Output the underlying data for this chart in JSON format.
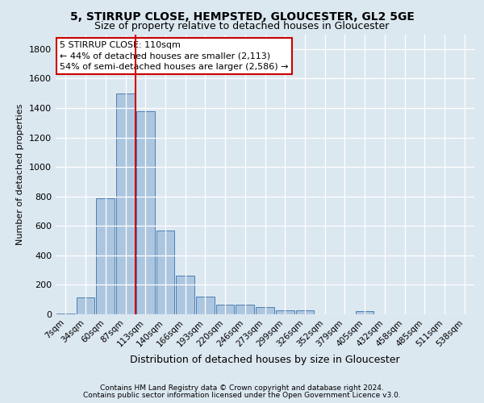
{
  "title1": "5, STIRRUP CLOSE, HEMPSTED, GLOUCESTER, GL2 5GE",
  "title2": "Size of property relative to detached houses in Gloucester",
  "xlabel": "Distribution of detached houses by size in Gloucester",
  "ylabel": "Number of detached properties",
  "categories": [
    "7sqm",
    "34sqm",
    "60sqm",
    "87sqm",
    "113sqm",
    "140sqm",
    "166sqm",
    "193sqm",
    "220sqm",
    "246sqm",
    "273sqm",
    "299sqm",
    "326sqm",
    "352sqm",
    "379sqm",
    "405sqm",
    "432sqm",
    "458sqm",
    "485sqm",
    "511sqm",
    "538sqm"
  ],
  "values": [
    5,
    115,
    790,
    1500,
    1380,
    570,
    265,
    120,
    65,
    65,
    50,
    30,
    25,
    0,
    0,
    20,
    0,
    0,
    0,
    0,
    0
  ],
  "bar_color": "#adc6e0",
  "bar_edge_color": "#4a7fb5",
  "vline_color": "#cc0000",
  "vline_index": 3.5,
  "annotation_line1": "5 STIRRUP CLOSE: 110sqm",
  "annotation_line2": "← 44% of detached houses are smaller (2,113)",
  "annotation_line3": "54% of semi-detached houses are larger (2,586) →",
  "annotation_box_facecolor": "#ffffff",
  "annotation_box_edgecolor": "#cc0000",
  "ylim": [
    0,
    1900
  ],
  "yticks": [
    0,
    200,
    400,
    600,
    800,
    1000,
    1200,
    1400,
    1600,
    1800
  ],
  "footer1": "Contains HM Land Registry data © Crown copyright and database right 2024.",
  "footer2": "Contains public sector information licensed under the Open Government Licence v3.0.",
  "bg_color": "#dce8f0",
  "title1_fontsize": 10,
  "title2_fontsize": 9,
  "ylabel_fontsize": 8,
  "xlabel_fontsize": 9,
  "tick_fontsize": 7.5,
  "ytick_fontsize": 8,
  "footer_fontsize": 6.5,
  "annot_fontsize": 8
}
